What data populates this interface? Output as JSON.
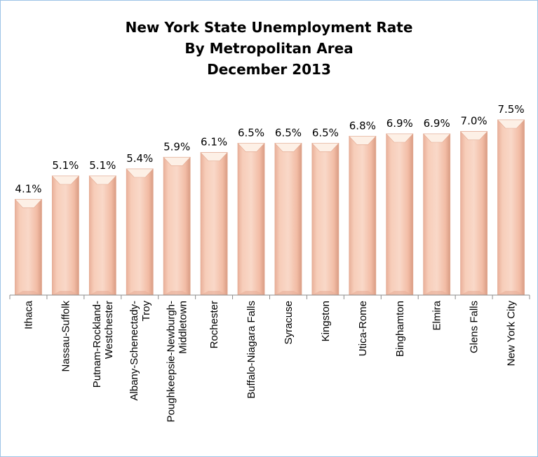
{
  "chart_data": {
    "type": "bar",
    "title": [
      "New York State Unemployment Rate",
      "By Metropolitan Area",
      "December 2013"
    ],
    "categories": [
      [
        "Ithaca"
      ],
      [
        "Nassau-Suffolk"
      ],
      [
        "Putnam-Rockland-",
        "Westchester"
      ],
      [
        "Albany-Schenectady-",
        "Troy"
      ],
      [
        "Poughkeepsie-Newburgh-",
        "Middletown"
      ],
      [
        "Rochester"
      ],
      [
        "Buffalo-Niagara Falls"
      ],
      [
        "Syracuse"
      ],
      [
        "Kingston"
      ],
      [
        "Utica-Rome"
      ],
      [
        "Binghamton"
      ],
      [
        "Elmira"
      ],
      [
        "Glens Falls"
      ],
      [
        "New York City"
      ]
    ],
    "values": [
      4.1,
      5.1,
      5.1,
      5.4,
      5.9,
      6.1,
      6.5,
      6.5,
      6.5,
      6.8,
      6.9,
      6.9,
      7.0,
      7.5
    ],
    "data_labels": [
      "4.1%",
      "5.1%",
      "5.1%",
      "5.4%",
      "5.9%",
      "6.1%",
      "6.5%",
      "6.5%",
      "6.5%",
      "6.8%",
      "6.9%",
      "6.9%",
      "7.0%",
      "7.5%"
    ],
    "ylim": [
      0,
      7.5
    ],
    "grid": false,
    "legend": "none",
    "colors": {
      "bar_face": "#f6c6b1",
      "bar_edge": "#e3a991",
      "bar_top": "#fdf0e6",
      "axis": "#8c8c8c",
      "frame": "#9dc3e6"
    }
  }
}
